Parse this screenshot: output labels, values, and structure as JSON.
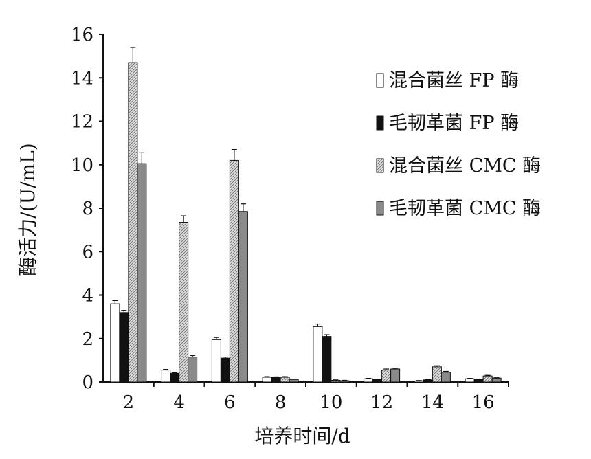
{
  "chart_data": {
    "type": "bar",
    "title": "",
    "xlabel": "培养时间/d",
    "ylabel": "酶活力/(U/mL)",
    "categories": [
      "2",
      "4",
      "6",
      "8",
      "10",
      "12",
      "14",
      "16"
    ],
    "ylim": [
      0,
      16
    ],
    "yticks": [
      0,
      2,
      4,
      6,
      8,
      10,
      12,
      14,
      16
    ],
    "grid": false,
    "legend_position": "top-right",
    "series": [
      {
        "name": "混合菌丝 FP 酶",
        "fill": "white",
        "values": [
          3.6,
          0.55,
          1.95,
          0.22,
          2.55,
          0.15,
          0.05,
          0.15
        ],
        "errors": [
          0.15,
          0.03,
          0.1,
          0.03,
          0.12,
          0.02,
          0.02,
          0.02
        ]
      },
      {
        "name": "毛韧革菌 FP 酶",
        "fill": "black",
        "values": [
          3.2,
          0.4,
          1.1,
          0.22,
          2.1,
          0.12,
          0.1,
          0.12
        ],
        "errors": [
          0.1,
          0.03,
          0.05,
          0.02,
          0.08,
          0.02,
          0.02,
          0.02
        ]
      },
      {
        "name": "混合菌丝 CMC 酶",
        "fill": "hatch",
        "values": [
          14.7,
          7.35,
          10.2,
          0.22,
          0.08,
          0.55,
          0.7,
          0.28
        ],
        "errors": [
          0.7,
          0.3,
          0.5,
          0.03,
          0.02,
          0.05,
          0.05,
          0.03
        ]
      },
      {
        "name": "毛韧革菌 CMC 酶",
        "fill": "gray",
        "values": [
          10.05,
          1.15,
          7.85,
          0.12,
          0.06,
          0.6,
          0.45,
          0.18
        ],
        "errors": [
          0.5,
          0.07,
          0.35,
          0.02,
          0.02,
          0.04,
          0.04,
          0.02
        ]
      }
    ]
  }
}
